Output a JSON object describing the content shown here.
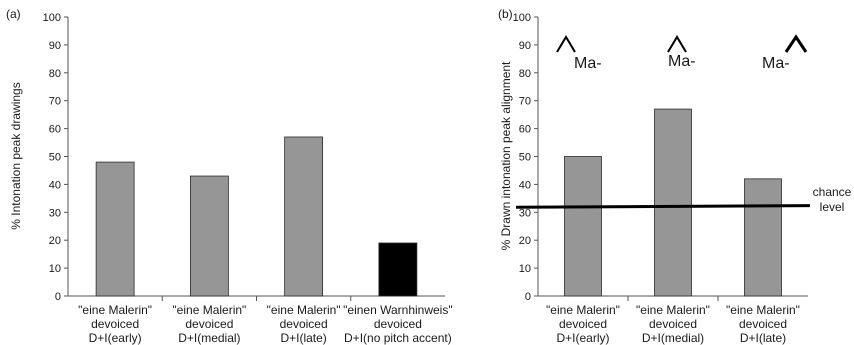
{
  "chart_data": [
    {
      "type": "bar",
      "panel_label": "(a)",
      "ylabel": "% Intonation peak drawings",
      "ylim": [
        0,
        100
      ],
      "yticks": [
        0,
        10,
        20,
        30,
        40,
        50,
        60,
        70,
        80,
        90,
        100
      ],
      "grid": false,
      "categories": [
        [
          "\"eine Malerin\"",
          "devoiced",
          "D+I(early)"
        ],
        [
          "\"eine Malerin\"",
          "devoiced",
          "D+I(medial)"
        ],
        [
          "\"eine Malerin\"",
          "devoiced",
          "D+I(late)"
        ],
        [
          "\"einen Warnhinweis\"",
          "devoiced",
          "D+I(no pitch accent)"
        ]
      ],
      "values": [
        48,
        43,
        57,
        19
      ],
      "bar_colors": [
        "#969696",
        "#969696",
        "#969696",
        "#000000"
      ]
    },
    {
      "type": "bar",
      "panel_label": "(b)",
      "ylabel": "% Drawn intonation peak alignment",
      "ylim": [
        0,
        100
      ],
      "yticks": [
        0,
        10,
        20,
        30,
        40,
        50,
        60,
        70,
        80,
        90,
        100
      ],
      "grid": false,
      "categories": [
        [
          "\"eine Malerin\"",
          "devoiced",
          "D+I(early)"
        ],
        [
          "\"eine Malerin\"",
          "devoiced",
          "D+I(medial)"
        ],
        [
          "\"eine Malerin\"",
          "devoiced",
          "D+I(late)"
        ]
      ],
      "values": [
        50,
        67,
        42
      ],
      "bar_colors": [
        "#969696",
        "#969696",
        "#969696"
      ],
      "reference_line": {
        "value_start": 31.8,
        "value_end": 32.4,
        "label": [
          "chance",
          "level"
        ]
      },
      "annotations": [
        {
          "text": "Ma-",
          "peak": "early"
        },
        {
          "text": "Ma-",
          "peak": "medial"
        },
        {
          "text": "Ma-",
          "peak": "late"
        }
      ]
    }
  ]
}
